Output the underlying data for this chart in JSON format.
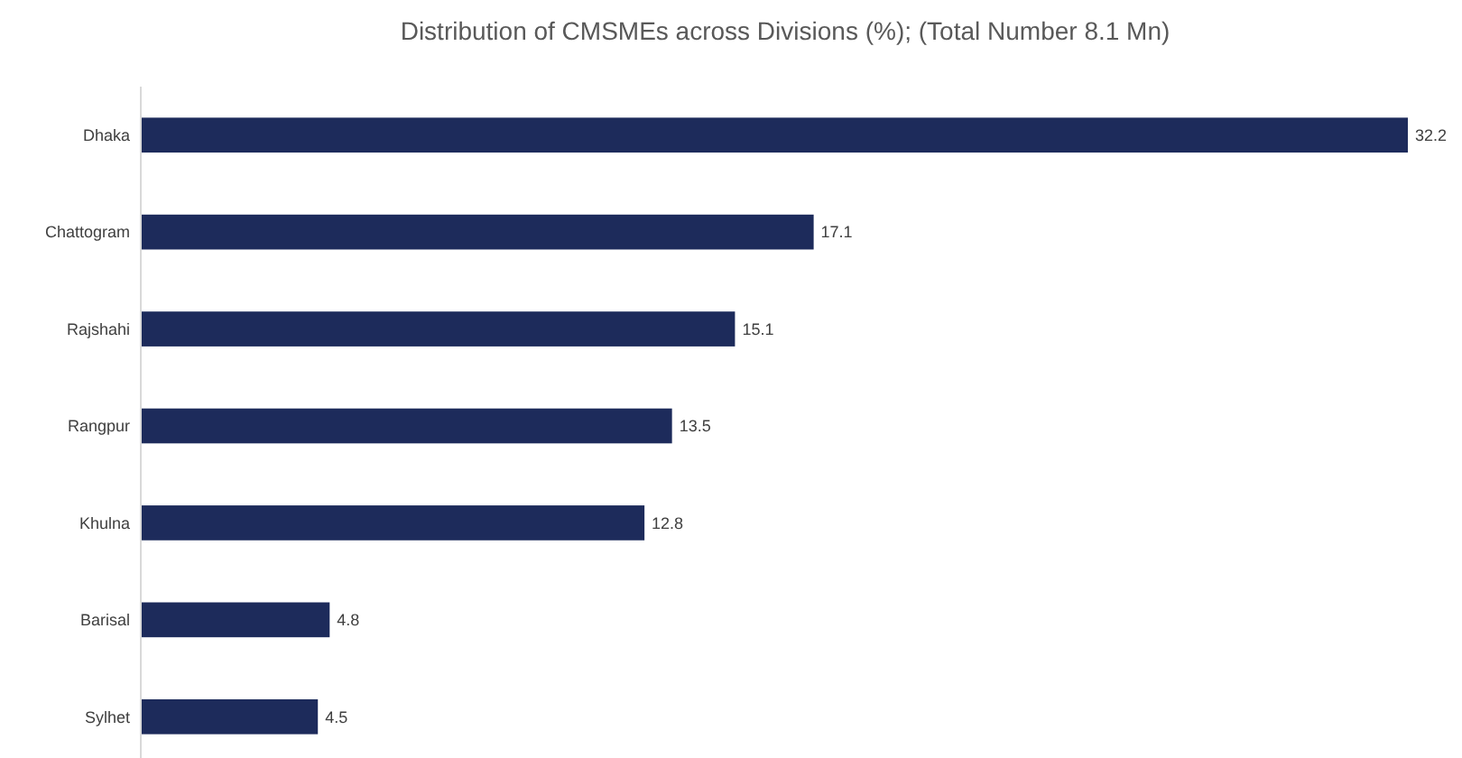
{
  "chart_data": {
    "type": "bar",
    "orientation": "horizontal",
    "title": "Distribution of CMSMEs across Divisions (%); (Total Number 8.1 Mn)",
    "categories": [
      "Dhaka",
      "Chattogram",
      "Rajshahi",
      "Rangpur",
      "Khulna",
      "Barisal",
      "Sylhet"
    ],
    "values": [
      32.2,
      17.1,
      15.1,
      13.5,
      12.8,
      4.8,
      4.5
    ],
    "color": "#1d2b5b",
    "data_labels": true,
    "tick_labels": "y"
  }
}
